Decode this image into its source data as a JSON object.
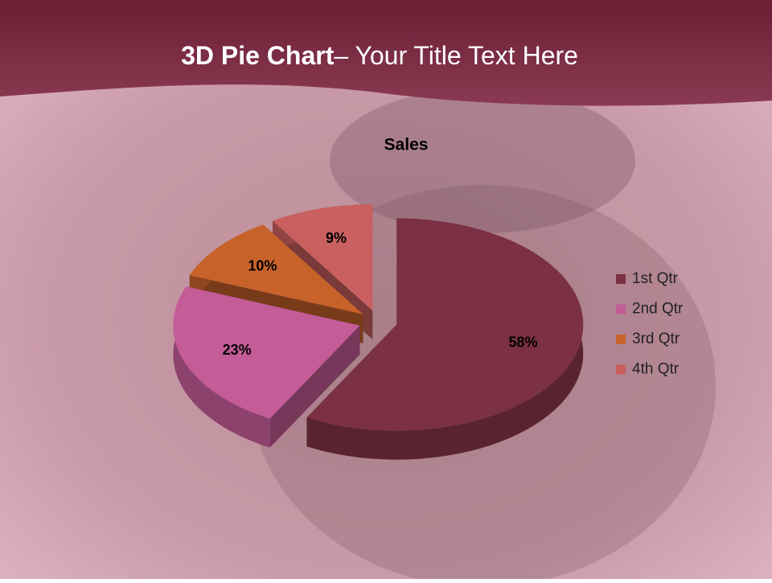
{
  "slide": {
    "title_bold": "3D Pie Chart",
    "title_rest": "– Your Title Text Here"
  },
  "chart_data": {
    "type": "pie",
    "title": "Sales",
    "categories": [
      "1st Qtr",
      "2nd Qtr",
      "3rd Qtr",
      "4th Qtr"
    ],
    "values": [
      58,
      23,
      10,
      9
    ],
    "value_labels": [
      "58%",
      "23%",
      "10%",
      "9%"
    ],
    "colors": [
      "#7b3043",
      "#c45c98",
      "#c8622b",
      "#c9605f"
    ],
    "legend": "right"
  }
}
